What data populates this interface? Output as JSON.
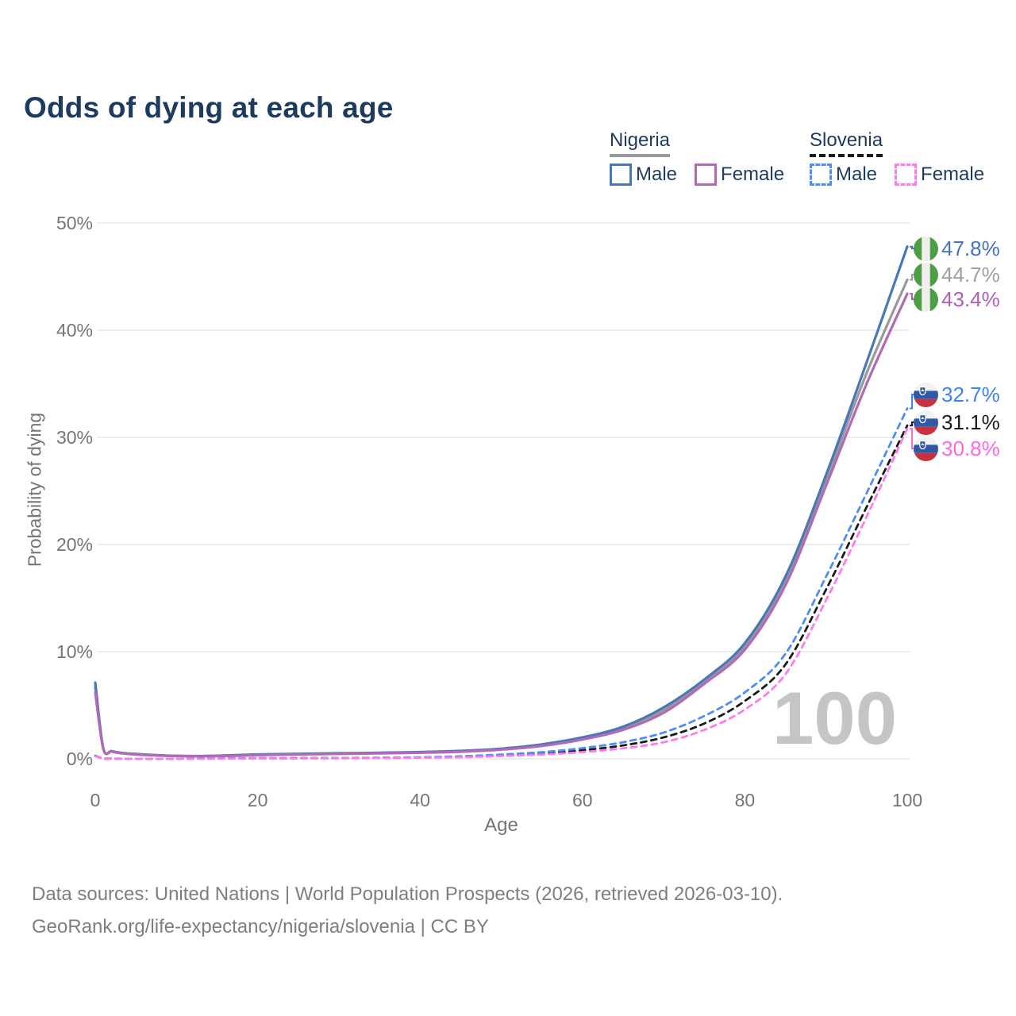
{
  "title": "Odds of dying at each age",
  "legend": {
    "groups": [
      {
        "country": "Nigeria",
        "line_style": "solid",
        "underline_color": "#999999",
        "items": [
          {
            "label": "Male",
            "color": "#4a77b8"
          },
          {
            "label": "Female",
            "color": "#b06ab6"
          }
        ]
      },
      {
        "country": "Slovenia",
        "line_style": "dashed",
        "underline_color": "#1a1a1a",
        "items": [
          {
            "label": "Male",
            "color": "#4d8df5"
          },
          {
            "label": "Female",
            "color": "#ff7bed"
          }
        ]
      }
    ]
  },
  "chart_data": {
    "type": "line",
    "title": "Odds of dying at each age",
    "xlabel": "Age",
    "ylabel": "Probability of dying",
    "xlim": [
      0,
      100
    ],
    "ylim": [
      0,
      50
    ],
    "grid": "horizontal",
    "legend_position": "top-right",
    "watermark": "100",
    "x_ticks": [
      "0",
      "20",
      "40",
      "60",
      "80",
      "100"
    ],
    "x_tick_values": [
      0,
      20,
      40,
      60,
      80,
      100
    ],
    "y_ticks": [
      "0%",
      "10%",
      "20%",
      "30%",
      "40%",
      "50%"
    ],
    "y_tick_values": [
      0,
      10,
      20,
      30,
      40,
      50
    ],
    "x": [
      0,
      1,
      2,
      3,
      4,
      5,
      7,
      10,
      13,
      15,
      18,
      20,
      25,
      30,
      35,
      40,
      45,
      50,
      55,
      60,
      65,
      70,
      75,
      80,
      85,
      90,
      95,
      100
    ],
    "series": [
      {
        "name": "Nigeria Both sexes",
        "color": "#9a9a9a",
        "dash": false,
        "values": [
          6.7,
          0.92,
          0.7,
          0.56,
          0.48,
          0.43,
          0.35,
          0.27,
          0.25,
          0.27,
          0.33,
          0.37,
          0.44,
          0.49,
          0.54,
          0.6,
          0.7,
          0.9,
          1.28,
          1.9,
          2.85,
          4.55,
          7.2,
          10.5,
          16.6,
          26.0,
          36.0,
          44.7
        ]
      },
      {
        "name": "Nigeria Male",
        "color": "#4a77b8",
        "dash": false,
        "values": [
          7.1,
          0.95,
          0.72,
          0.58,
          0.5,
          0.45,
          0.36,
          0.28,
          0.26,
          0.29,
          0.36,
          0.41,
          0.47,
          0.52,
          0.57,
          0.63,
          0.74,
          0.95,
          1.35,
          2.0,
          3.0,
          4.8,
          7.4,
          10.8,
          17.0,
          26.5,
          37.0,
          47.8
        ]
      },
      {
        "name": "Nigeria Female",
        "color": "#b06ab6",
        "dash": false,
        "values": [
          6.2,
          0.9,
          0.68,
          0.54,
          0.46,
          0.41,
          0.33,
          0.26,
          0.24,
          0.25,
          0.3,
          0.34,
          0.41,
          0.46,
          0.51,
          0.57,
          0.66,
          0.86,
          1.2,
          1.8,
          2.7,
          4.3,
          7.0,
          10.2,
          16.2,
          25.5,
          35.0,
          43.4
        ]
      },
      {
        "name": "Slovenia Both sexes",
        "color": "#1a1a1a",
        "dash": true,
        "values": [
          0.27,
          0.03,
          0.02,
          0.01,
          0.01,
          0.01,
          0.01,
          0.01,
          0.02,
          0.02,
          0.04,
          0.05,
          0.06,
          0.07,
          0.09,
          0.12,
          0.19,
          0.32,
          0.5,
          0.8,
          1.25,
          2.0,
          3.3,
          5.4,
          8.8,
          15.8,
          23.5,
          31.1
        ]
      },
      {
        "name": "Slovenia Male",
        "color": "#4d8df5",
        "dash": true,
        "values": [
          0.3,
          0.03,
          0.02,
          0.02,
          0.01,
          0.01,
          0.01,
          0.01,
          0.02,
          0.03,
          0.05,
          0.06,
          0.07,
          0.08,
          0.1,
          0.15,
          0.24,
          0.4,
          0.62,
          1.0,
          1.55,
          2.45,
          4.0,
          6.2,
          9.8,
          17.0,
          24.8,
          32.7
        ]
      },
      {
        "name": "Slovenia Female",
        "color": "#ff7bed",
        "dash": true,
        "values": [
          0.24,
          0.02,
          0.02,
          0.01,
          0.01,
          0.01,
          0.01,
          0.01,
          0.01,
          0.02,
          0.02,
          0.03,
          0.04,
          0.05,
          0.07,
          0.1,
          0.15,
          0.25,
          0.4,
          0.63,
          0.98,
          1.55,
          2.7,
          4.6,
          7.9,
          14.8,
          22.6,
          30.8
        ]
      }
    ],
    "end_labels": [
      {
        "flag": "nigeria",
        "text": "47.8%",
        "value": 47.8,
        "color": "#4472c4"
      },
      {
        "flag": "nigeria",
        "text": "44.7%",
        "value": 44.7,
        "color": "#9e9e9e"
      },
      {
        "flag": "nigeria",
        "text": "43.4%",
        "value": 43.4,
        "color": "#b05fb8"
      },
      {
        "flag": "slovenia",
        "text": "32.7%",
        "value": 32.7,
        "color": "#3b82f6"
      },
      {
        "flag": "slovenia",
        "text": "31.1%",
        "value": 31.1,
        "color": "#1a1a1a"
      },
      {
        "flag": "slovenia",
        "text": "30.8%",
        "value": 30.8,
        "color": "#ff66e0"
      }
    ]
  },
  "footer": {
    "line1": "Data sources: United Nations | World Population Prospects (2026, retrieved 2026-03-10).",
    "line2": "GeoRank.org/life-expectancy/nigeria/slovenia | CC BY"
  }
}
